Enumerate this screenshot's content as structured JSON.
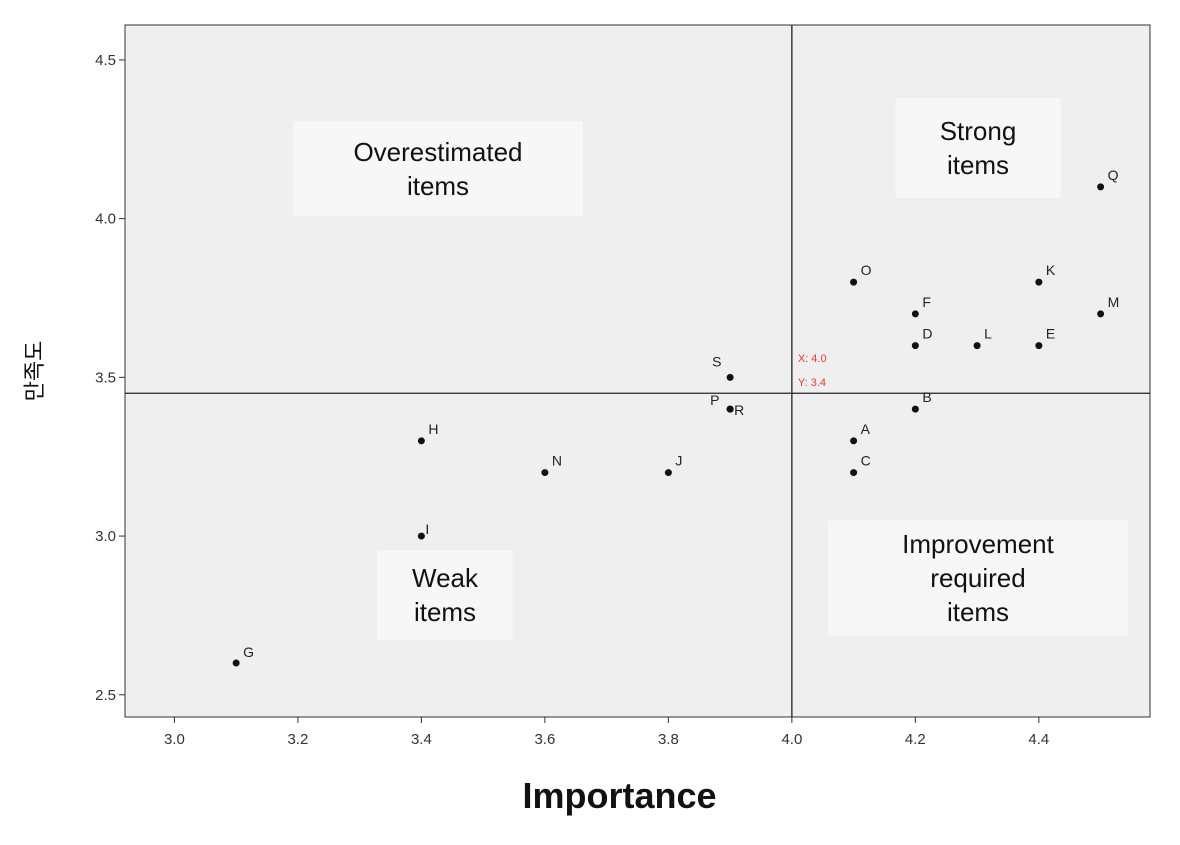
{
  "chart_data": {
    "type": "scatter",
    "title": "",
    "xlabel": "Importance",
    "ylabel": "만족도",
    "xlim": [
      2.92,
      4.58
    ],
    "ylim": [
      2.43,
      4.61
    ],
    "xticks": [
      "3.0",
      "3.2",
      "3.4",
      "3.6",
      "3.8",
      "4.0",
      "4.2",
      "4.4"
    ],
    "yticks": [
      "2.5",
      "3.0",
      "3.5",
      "4.0",
      "4.5"
    ],
    "grid": false,
    "points": [
      {
        "label": "A",
        "x": 4.1,
        "y": 3.3
      },
      {
        "label": "B",
        "x": 4.2,
        "y": 3.4
      },
      {
        "label": "C",
        "x": 4.1,
        "y": 3.2
      },
      {
        "label": "D",
        "x": 4.2,
        "y": 3.6
      },
      {
        "label": "E",
        "x": 4.4,
        "y": 3.6
      },
      {
        "label": "F",
        "x": 4.2,
        "y": 3.7
      },
      {
        "label": "G",
        "x": 3.1,
        "y": 2.6
      },
      {
        "label": "H",
        "x": 3.4,
        "y": 3.3
      },
      {
        "label": "I",
        "x": 3.4,
        "y": 3.0
      },
      {
        "label": "J",
        "x": 3.8,
        "y": 3.2
      },
      {
        "label": "K",
        "x": 4.4,
        "y": 3.8
      },
      {
        "label": "L",
        "x": 4.3,
        "y": 3.6
      },
      {
        "label": "M",
        "x": 4.5,
        "y": 3.7
      },
      {
        "label": "N",
        "x": 3.6,
        "y": 3.2
      },
      {
        "label": "O",
        "x": 4.1,
        "y": 3.8
      },
      {
        "label": "P",
        "x": 3.9,
        "y": 3.4
      },
      {
        "label": "Q",
        "x": 4.5,
        "y": 4.1
      },
      {
        "label": "R",
        "x": 3.9,
        "y": 3.4
      },
      {
        "label": "S",
        "x": 3.9,
        "y": 3.5
      }
    ],
    "reference_lines": {
      "x": 4.0,
      "y": 3.45
    },
    "reference_labels": [
      "X: 4.0",
      "Y: 3.4"
    ],
    "quadrant_labels": {
      "top_left": [
        "Overestimated",
        "items"
      ],
      "top_right": [
        "Strong",
        "items"
      ],
      "bottom_left": [
        "Weak",
        "items"
      ],
      "bottom_right": [
        "Improvement",
        "required",
        "items"
      ]
    },
    "colors": {
      "plot_background": "#efefef",
      "quadrant_label_background": "#f7f7f7",
      "marker": "#111111",
      "reference_label": "#e53935",
      "axis": "#333333"
    }
  }
}
